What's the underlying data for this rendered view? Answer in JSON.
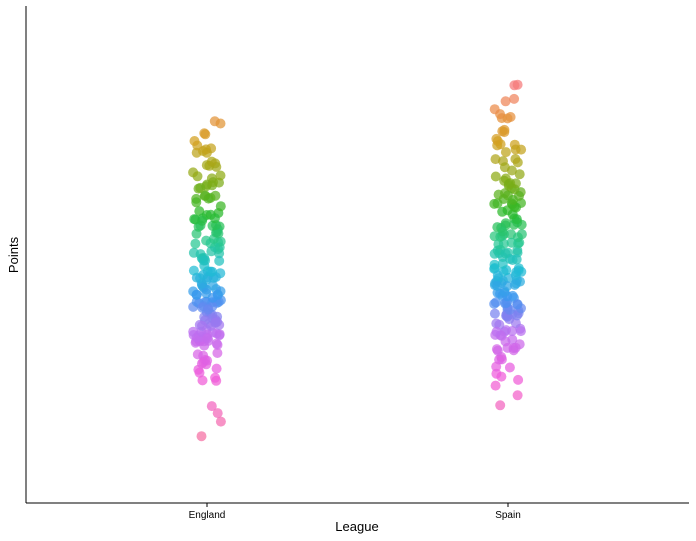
{
  "chart_data": {
    "type": "scatter",
    "subtype": "jitter-strip",
    "title": "",
    "xlabel": "League",
    "ylabel": "Points",
    "categories": [
      "England",
      "Spain"
    ],
    "y_tick_labels_shown": false,
    "grid": false,
    "legend": "none",
    "point_style": {
      "opacity": 0.7,
      "palette": "hue gradient (pink → orange → olive → green → teal → blue → violet → magenta) by point rank"
    },
    "series": [
      {
        "category": "England",
        "y_range": [
          0.13,
          0.77
        ],
        "density_profile": [
          [
            0.13,
            1
          ],
          [
            0.16,
            1
          ],
          [
            0.19,
            2
          ],
          [
            0.24,
            2
          ],
          [
            0.26,
            4
          ],
          [
            0.29,
            8
          ],
          [
            0.32,
            10
          ],
          [
            0.34,
            14
          ],
          [
            0.37,
            16
          ],
          [
            0.4,
            16
          ],
          [
            0.43,
            14
          ],
          [
            0.46,
            12
          ],
          [
            0.49,
            10
          ],
          [
            0.52,
            10
          ],
          [
            0.55,
            10
          ],
          [
            0.58,
            9
          ],
          [
            0.61,
            8
          ],
          [
            0.64,
            8
          ],
          [
            0.67,
            7
          ],
          [
            0.7,
            6
          ],
          [
            0.73,
            4
          ],
          [
            0.76,
            2
          ]
        ]
      },
      {
        "category": "Spain",
        "y_range": [
          0.2,
          0.84
        ],
        "density_profile": [
          [
            0.2,
            1
          ],
          [
            0.23,
            2
          ],
          [
            0.25,
            2
          ],
          [
            0.27,
            3
          ],
          [
            0.3,
            4
          ],
          [
            0.32,
            8
          ],
          [
            0.35,
            12
          ],
          [
            0.38,
            14
          ],
          [
            0.41,
            14
          ],
          [
            0.44,
            14
          ],
          [
            0.47,
            12
          ],
          [
            0.5,
            12
          ],
          [
            0.53,
            12
          ],
          [
            0.56,
            10
          ],
          [
            0.59,
            10
          ],
          [
            0.62,
            9
          ],
          [
            0.65,
            8
          ],
          [
            0.68,
            6
          ],
          [
            0.71,
            6
          ],
          [
            0.74,
            5
          ],
          [
            0.77,
            4
          ],
          [
            0.8,
            3
          ],
          [
            0.83,
            2
          ]
        ]
      }
    ],
    "ylim": [
      0,
      1
    ]
  }
}
